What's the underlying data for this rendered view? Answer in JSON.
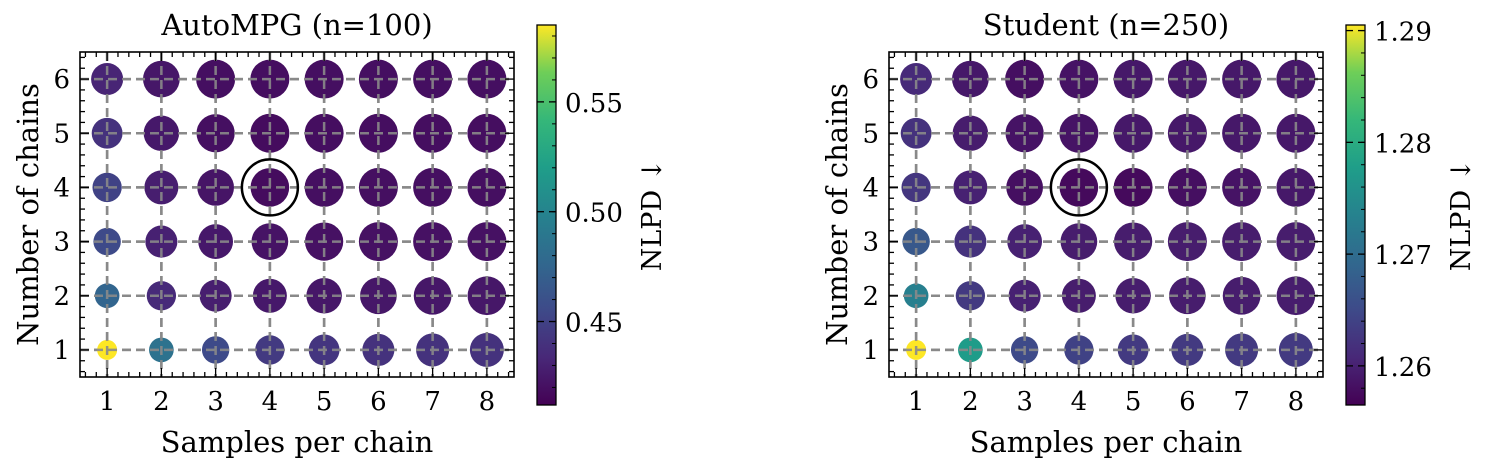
{
  "chart_data": [
    {
      "type": "scatter",
      "title": "AutoMPG (n=100)",
      "xlabel": "Samples per chain",
      "ylabel": "Number of chains",
      "x": [
        1,
        2,
        3,
        4,
        5,
        6,
        7,
        8
      ],
      "y": [
        1,
        2,
        3,
        4,
        5,
        6
      ],
      "xlim": [
        0.5,
        8.5
      ],
      "ylim": [
        0.5,
        6.5
      ],
      "xticks": [
        "1",
        "2",
        "3",
        "4",
        "5",
        "6",
        "7",
        "8"
      ],
      "yticks": [
        "1",
        "2",
        "3",
        "4",
        "5",
        "6"
      ],
      "grid": true,
      "values": [
        [
          0.585,
          0.485,
          0.455,
          0.445,
          0.442,
          0.44,
          0.44,
          0.44
        ],
        [
          0.475,
          0.435,
          0.428,
          0.425,
          0.424,
          0.424,
          0.424,
          0.424
        ],
        [
          0.455,
          0.43,
          0.425,
          0.422,
          0.421,
          0.421,
          0.421,
          0.421
        ],
        [
          0.45,
          0.428,
          0.423,
          0.418,
          0.42,
          0.42,
          0.42,
          0.42
        ],
        [
          0.44,
          0.425,
          0.42,
          0.418,
          0.419,
          0.419,
          0.419,
          0.419
        ],
        [
          0.432,
          0.424,
          0.42,
          0.419,
          0.42,
          0.42,
          0.42,
          0.42
        ]
      ],
      "highlight": {
        "x": 4,
        "y": 4
      },
      "colorbar": {
        "label": "NLPD ↓",
        "range": [
          0.412,
          0.585
        ],
        "ticks": [
          0.45,
          0.5,
          0.55
        ],
        "tick_labels": [
          "0.45",
          "0.50",
          "0.55"
        ],
        "colormap": "viridis"
      }
    },
    {
      "type": "scatter",
      "title": "Student (n=250)",
      "xlabel": "Samples per chain",
      "ylabel": "Number of chains",
      "x": [
        1,
        2,
        3,
        4,
        5,
        6,
        7,
        8
      ],
      "y": [
        1,
        2,
        3,
        4,
        5,
        6
      ],
      "xlim": [
        0.5,
        8.5
      ],
      "ylim": [
        0.5,
        6.5
      ],
      "xticks": [
        "1",
        "2",
        "3",
        "4",
        "5",
        "6",
        "7",
        "8"
      ],
      "yticks": [
        "1",
        "2",
        "3",
        "4",
        "5",
        "6"
      ],
      "grid": true,
      "values": [
        [
          1.2905,
          1.2775,
          1.265,
          1.264,
          1.263,
          1.263,
          1.263,
          1.263
        ],
        [
          1.273,
          1.263,
          1.26,
          1.2595,
          1.2595,
          1.2595,
          1.2595,
          1.2595
        ],
        [
          1.267,
          1.262,
          1.26,
          1.2595,
          1.2595,
          1.2595,
          1.2595,
          1.2595
        ],
        [
          1.2625,
          1.26,
          1.258,
          1.2575,
          1.2575,
          1.258,
          1.2585,
          1.259
        ],
        [
          1.262,
          1.2595,
          1.2585,
          1.2585,
          1.259,
          1.259,
          1.259,
          1.259
        ],
        [
          1.261,
          1.259,
          1.258,
          1.2585,
          1.259,
          1.259,
          1.259,
          1.259
        ]
      ],
      "highlight": {
        "x": 4,
        "y": 4
      },
      "colorbar": {
        "label": "NLPD ↓",
        "range": [
          1.2565,
          1.2905
        ],
        "ticks": [
          1.26,
          1.27,
          1.28,
          1.29
        ],
        "tick_labels": [
          "1.26",
          "1.27",
          "1.28",
          "1.29"
        ],
        "colormap": "viridis"
      }
    }
  ]
}
